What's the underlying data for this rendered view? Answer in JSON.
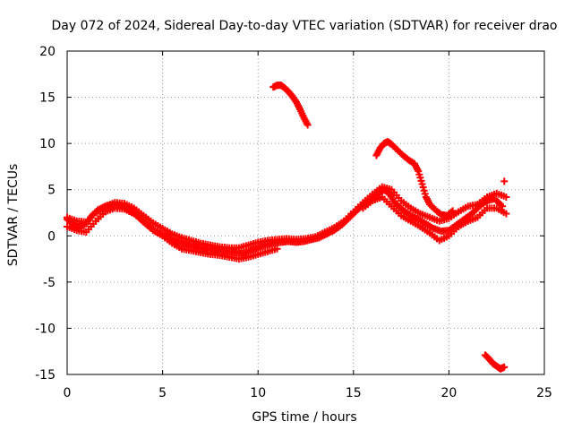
{
  "chart_data": {
    "type": "scatter",
    "title": "Day 072 of 2024, Sidereal Day-to-day VTEC variation (SDTVAR) for receiver drao",
    "xlabel": "GPS time / hours",
    "ylabel": "SDTVAR / TECUs",
    "xlim": [
      0,
      25
    ],
    "ylim": [
      -15,
      20
    ],
    "xticks": [
      0,
      5,
      10,
      15,
      20,
      25
    ],
    "yticks": [
      -15,
      -10,
      -5,
      0,
      5,
      10,
      15,
      20
    ],
    "grid": true,
    "grid_style": "dotted",
    "marker": "+",
    "series_color": "#ff0000",
    "series": [
      {
        "name": "main-band",
        "x": [
          0.0,
          0.3,
          0.6,
          1.0,
          1.3,
          1.6,
          2.0,
          2.4,
          2.8,
          3.2,
          3.6,
          4.0,
          4.4,
          4.8,
          5.2,
          5.6,
          6.0,
          6.4,
          6.8,
          7.2,
          7.6,
          8.0,
          8.4,
          8.8,
          9.2,
          9.6,
          10.0,
          10.4,
          10.8,
          11.2,
          11.6,
          12.0,
          12.4,
          12.8,
          13.2,
          13.6,
          14.0,
          14.4,
          14.8,
          15.2,
          15.6,
          16.0,
          16.3,
          16.6,
          16.9,
          17.2,
          17.6,
          18.0,
          18.4,
          18.8,
          19.2,
          19.6,
          20.0,
          20.4,
          20.8,
          21.2,
          21.6,
          22.0,
          22.4,
          22.8
        ],
        "y": [
          1.8,
          1.2,
          1.0,
          1.3,
          2.2,
          2.8,
          3.2,
          3.4,
          3.3,
          2.8,
          2.3,
          1.5,
          0.8,
          0.3,
          0.0,
          -0.5,
          -0.8,
          -1.0,
          -1.2,
          -1.4,
          -1.5,
          -1.6,
          -1.7,
          -1.8,
          -1.9,
          -1.6,
          -1.3,
          -1.0,
          -0.8,
          -0.7,
          -0.6,
          -0.7,
          -0.6,
          -0.4,
          -0.2,
          0.2,
          0.6,
          1.2,
          2.0,
          2.8,
          3.5,
          4.0,
          4.5,
          5.0,
          4.5,
          3.5,
          2.8,
          2.2,
          1.8,
          1.3,
          0.8,
          0.5,
          0.6,
          1.2,
          1.8,
          2.4,
          3.2,
          3.8,
          4.0,
          3.2
        ]
      },
      {
        "name": "upper-band",
        "x": [
          0.0,
          0.5,
          1.0,
          1.5,
          2.0,
          2.5,
          3.0,
          3.5,
          4.0,
          4.5,
          5.0,
          5.5,
          6.0,
          6.5,
          7.0,
          7.5,
          8.0,
          8.5,
          9.0,
          9.5,
          10.0,
          10.5,
          11.0,
          11.5,
          12.0,
          12.5,
          13.0,
          13.5,
          14.0,
          14.5,
          15.0,
          15.5,
          16.0,
          16.5,
          17.0,
          17.5,
          18.0,
          18.5,
          19.0,
          19.5,
          20.0,
          20.5,
          21.0,
          21.5,
          22.0,
          22.5,
          23.0
        ],
        "y": [
          2.0,
          1.6,
          1.5,
          2.5,
          3.2,
          3.6,
          3.5,
          3.0,
          2.2,
          1.4,
          0.8,
          0.2,
          -0.2,
          -0.5,
          -0.8,
          -1.0,
          -1.2,
          -1.3,
          -1.3,
          -1.0,
          -0.7,
          -0.5,
          -0.4,
          -0.3,
          -0.4,
          -0.3,
          -0.1,
          0.4,
          0.9,
          1.6,
          2.6,
          3.6,
          4.5,
          5.3,
          5.0,
          3.8,
          3.0,
          2.4,
          2.0,
          1.6,
          1.9,
          2.6,
          3.2,
          3.4,
          4.2,
          4.6,
          4.2
        ]
      },
      {
        "name": "lower-band",
        "x": [
          0.0,
          0.5,
          1.0,
          1.5,
          2.0,
          2.5,
          3.0,
          3.5,
          4.0,
          4.5,
          5.0,
          5.5,
          6.0,
          6.5,
          7.0,
          7.5,
          8.0,
          8.5,
          9.0,
          9.5,
          10.0,
          10.5,
          11.0,
          15.5,
          16.0,
          16.5,
          17.0,
          17.5,
          18.0,
          18.5,
          19.0,
          19.5,
          20.0,
          20.5,
          21.0,
          21.5,
          22.0,
          22.5,
          23.0
        ],
        "y": [
          1.0,
          0.6,
          0.4,
          1.6,
          2.6,
          3.0,
          2.9,
          2.4,
          1.6,
          0.6,
          0.0,
          -0.8,
          -1.4,
          -1.6,
          -1.8,
          -2.0,
          -2.1,
          -2.3,
          -2.5,
          -2.3,
          -2.0,
          -1.7,
          -1.4,
          3.0,
          3.8,
          4.2,
          3.2,
          2.2,
          1.6,
          1.0,
          0.3,
          -0.5,
          0.0,
          1.0,
          1.6,
          2.0,
          3.0,
          3.0,
          2.4
        ]
      },
      {
        "name": "high-arc-1",
        "x": [
          10.8,
          11.0,
          11.2,
          11.4,
          11.6,
          11.8,
          12.0,
          12.2,
          12.4,
          12.6
        ],
        "y": [
          16.1,
          16.3,
          16.3,
          16.0,
          15.6,
          15.1,
          14.5,
          13.7,
          12.8,
          12.0
        ]
      },
      {
        "name": "high-arc-2",
        "x": [
          16.2,
          16.4,
          16.6,
          16.8,
          17.0,
          17.3,
          17.6,
          17.9,
          18.2,
          18.4,
          18.6,
          18.8,
          19.0,
          19.3,
          19.6,
          19.9,
          20.2
        ],
        "y": [
          8.7,
          9.5,
          10.0,
          10.2,
          9.9,
          9.3,
          8.7,
          8.2,
          7.8,
          7.0,
          5.6,
          4.2,
          3.4,
          2.8,
          2.3,
          2.2,
          2.7
        ]
      },
      {
        "name": "low-arc",
        "x": [
          21.9,
          22.1,
          22.3,
          22.5,
          22.7,
          22.9
        ],
        "y": [
          -12.9,
          -13.3,
          -13.8,
          -14.1,
          -14.4,
          -14.2
        ]
      },
      {
        "name": "outlier",
        "x": [
          22.9
        ],
        "y": [
          5.9
        ]
      }
    ]
  }
}
